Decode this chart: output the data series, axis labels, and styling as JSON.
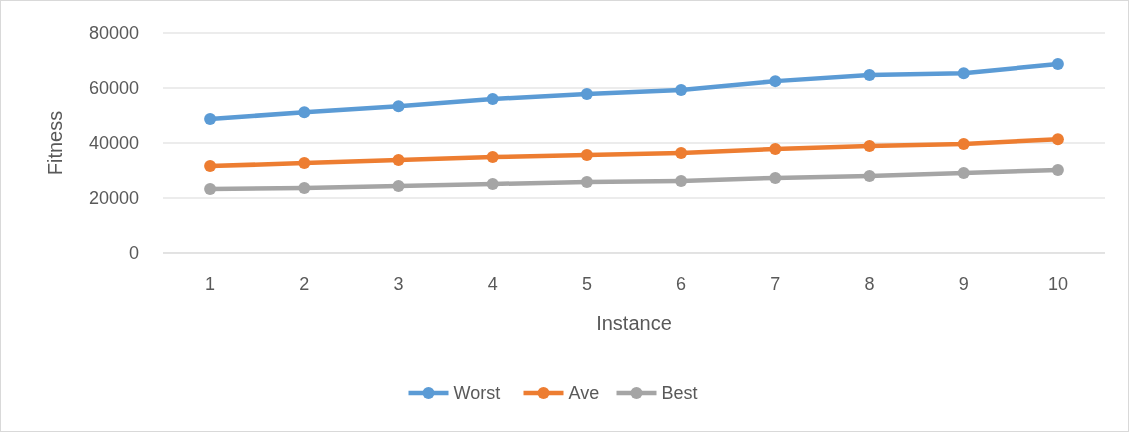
{
  "chart_data": {
    "type": "line",
    "xlabel": "Instance",
    "ylabel": "Fitness",
    "categories": [
      "1",
      "2",
      "3",
      "4",
      "5",
      "6",
      "7",
      "8",
      "9",
      "10"
    ],
    "series": [
      {
        "name": "Worst",
        "color": "#5b9bd5",
        "values": [
          48700,
          51200,
          53400,
          56000,
          57800,
          59300,
          62500,
          64700,
          65400,
          68700
        ]
      },
      {
        "name": "Ave",
        "color": "#ed7d31",
        "values": [
          31600,
          32700,
          33800,
          34900,
          35600,
          36400,
          37800,
          38900,
          39600,
          41400
        ]
      },
      {
        "name": "Best",
        "color": "#a5a5a5",
        "values": [
          23300,
          23600,
          24400,
          25100,
          25800,
          26200,
          27300,
          28000,
          29100,
          30200
        ]
      }
    ],
    "ylim": [
      0,
      80000
    ],
    "yticks": [
      0,
      20000,
      40000,
      60000,
      80000
    ],
    "grid": "y",
    "legend": "bottom",
    "marker": "circle",
    "line_style": "solid"
  }
}
